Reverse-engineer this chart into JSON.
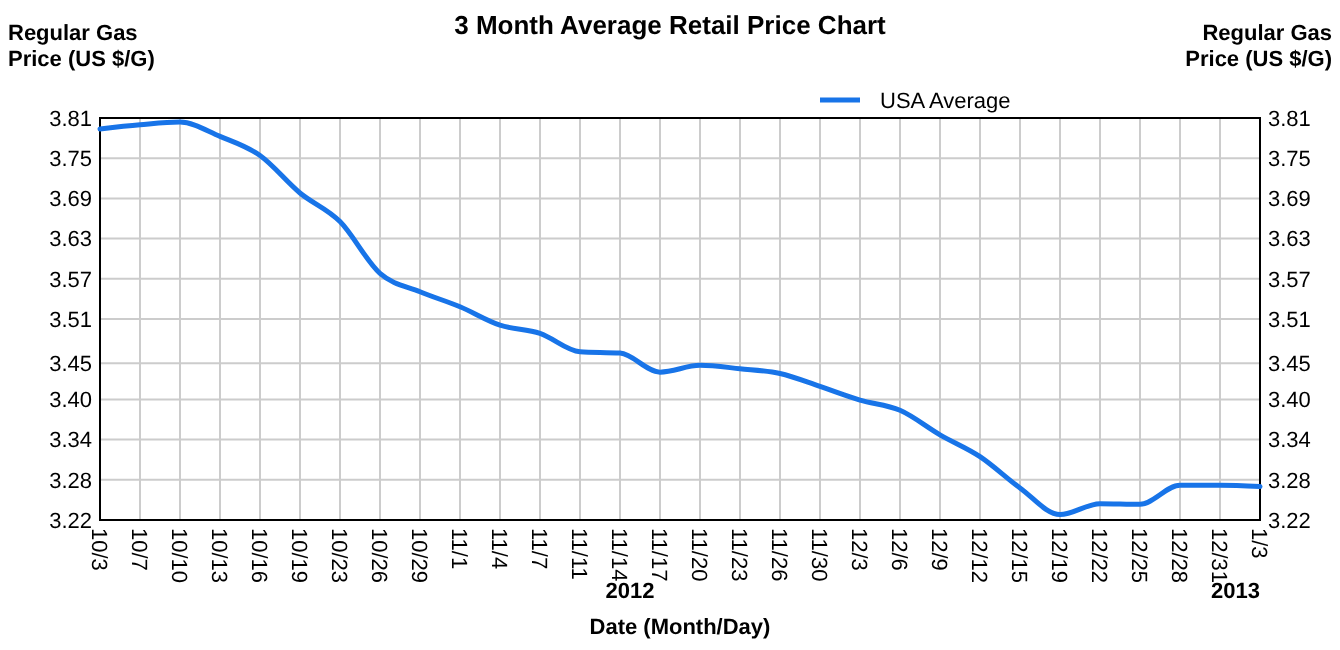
{
  "chart_data": {
    "type": "line",
    "title": "3 Month Average Retail Price Chart",
    "ylabel": "Regular Gas\nPrice (US $/G)",
    "y2label": "Regular Gas\nPrice (US $/G)",
    "xlabel": "Date (Month/Day)",
    "categories": [
      "10/3",
      "10/7",
      "10/10",
      "10/13",
      "10/16",
      "10/19",
      "10/23",
      "10/26",
      "10/29",
      "11/1",
      "11/4",
      "11/7",
      "11/11",
      "11/14",
      "11/17",
      "11/20",
      "11/23",
      "11/26",
      "11/30",
      "12/3",
      "12/6",
      "12/9",
      "12/12",
      "12/15",
      "12/19",
      "12/22",
      "12/25",
      "12/28",
      "12/31",
      "1/3"
    ],
    "series": [
      {
        "name": "USA Average",
        "color": "#1874e8",
        "values": [
          3.794,
          3.8,
          3.804,
          3.783,
          3.755,
          3.7,
          3.658,
          3.582,
          3.555,
          3.533,
          3.506,
          3.494,
          3.467,
          3.465,
          3.437,
          3.447,
          3.442,
          3.435,
          3.416,
          3.396,
          3.381,
          3.345,
          3.313,
          3.267,
          3.228,
          3.244,
          3.243,
          3.271,
          3.271,
          3.269
        ]
      }
    ],
    "ylim": [
      3.22,
      3.81
    ],
    "yticks": [
      {
        "value": 3.22,
        "label": "3.22"
      },
      {
        "value": 3.279,
        "label": "3.28"
      },
      {
        "value": 3.338,
        "label": "3.34"
      },
      {
        "value": 3.397,
        "label": "3.40"
      },
      {
        "value": 3.45,
        "label": "3.45"
      },
      {
        "value": 3.515,
        "label": "3.51"
      },
      {
        "value": 3.574,
        "label": "3.57"
      },
      {
        "value": 3.633,
        "label": "3.63"
      },
      {
        "value": 3.692,
        "label": "3.69"
      },
      {
        "value": 3.751,
        "label": "3.75"
      },
      {
        "value": 3.81,
        "label": "3.81"
      }
    ],
    "y2lim": [
      3.22,
      3.81
    ],
    "y2ticks": [
      {
        "value": 3.22,
        "label": "3.22"
      },
      {
        "value": 3.279,
        "label": "3.28"
      },
      {
        "value": 3.338,
        "label": "3.34"
      },
      {
        "value": 3.397,
        "label": "3.40"
      },
      {
        "value": 3.45,
        "label": "3.45"
      },
      {
        "value": 3.515,
        "label": "3.51"
      },
      {
        "value": 3.574,
        "label": "3.57"
      },
      {
        "value": 3.633,
        "label": "3.63"
      },
      {
        "value": 3.692,
        "label": "3.69"
      },
      {
        "value": 3.751,
        "label": "3.75"
      },
      {
        "value": 3.81,
        "label": "3.81"
      }
    ],
    "annotations": [
      "2012",
      "2013"
    ],
    "grid": true,
    "legend": "top right",
    "marker": "none",
    "line_style": "solid"
  }
}
